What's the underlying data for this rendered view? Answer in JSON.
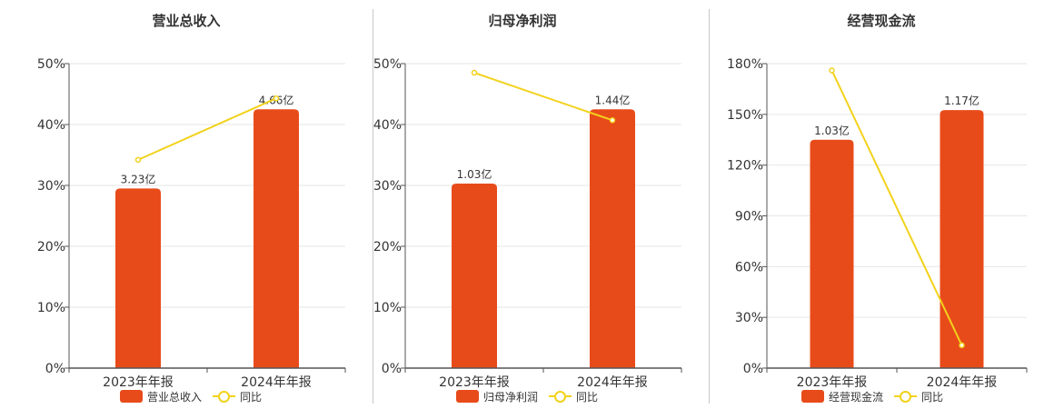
{
  "colors": {
    "bar": "#E84B1A",
    "line": "#F2D21C",
    "grid": "#E6E6E6",
    "axis": "#555555",
    "text": "#333333"
  },
  "chart_data": [
    {
      "type": "bar",
      "title": "营业总收入",
      "categories": [
        "2023年年报",
        "2024年年报"
      ],
      "series": [
        {
          "name": "营业总收入",
          "type": "bar",
          "values": [
            29.5,
            42.5
          ],
          "data_labels": [
            "3.23亿",
            "4.66亿"
          ]
        },
        {
          "name": "同比",
          "type": "line",
          "values": [
            34.2,
            44.3
          ]
        }
      ],
      "y_ticks": [
        "0%",
        "10%",
        "20%",
        "30%",
        "40%",
        "50%"
      ],
      "ylim": [
        0,
        50
      ],
      "grid": true,
      "legend": "bottom"
    },
    {
      "type": "bar",
      "title": "归母净利润",
      "categories": [
        "2023年年报",
        "2024年年报"
      ],
      "series": [
        {
          "name": "归母净利润",
          "type": "bar",
          "values": [
            30.3,
            42.5
          ],
          "data_labels": [
            "1.03亿",
            "1.44亿"
          ]
        },
        {
          "name": "同比",
          "type": "line",
          "values": [
            48.5,
            40.7
          ]
        }
      ],
      "y_ticks": [
        "0%",
        "10%",
        "20%",
        "30%",
        "40%",
        "50%"
      ],
      "ylim": [
        0,
        50
      ],
      "grid": true,
      "legend": "bottom"
    },
    {
      "type": "bar",
      "title": "经营现金流",
      "categories": [
        "2023年年报",
        "2024年年报"
      ],
      "series": [
        {
          "name": "经营现金流",
          "type": "bar",
          "values": [
            135,
            152.5
          ],
          "data_labels": [
            "1.03亿",
            "1.17亿"
          ]
        },
        {
          "name": "同比",
          "type": "line",
          "values": [
            176,
            13.5
          ]
        }
      ],
      "y_ticks": [
        "0%",
        "30%",
        "60%",
        "90%",
        "120%",
        "150%",
        "180%"
      ],
      "ylim": [
        0,
        180
      ],
      "grid": true,
      "legend": "bottom"
    }
  ]
}
